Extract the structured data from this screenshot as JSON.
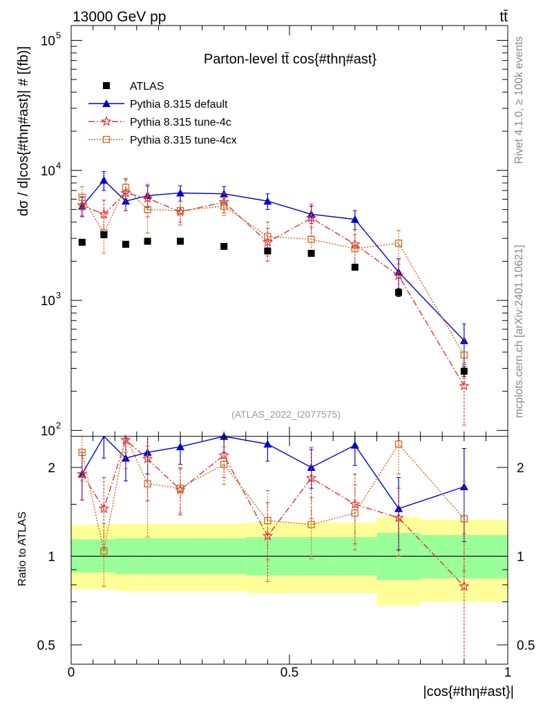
{
  "header": {
    "energy_label": "13000 GeV pp",
    "process_label": "tt̄"
  },
  "side_labels": {
    "rivet": "Rivet 4.1.0, ≥ 100k events",
    "mcplots": "mcplots.cern.ch [arXiv:2401.10621]"
  },
  "colors": {
    "atlas": "#000000",
    "default": "#0000cc",
    "tune4c": "#dd3333",
    "tune4cx": "#cc6622",
    "band_inner": "#99ff99",
    "band_outer": "#ffff99"
  },
  "chart_data": [
    {
      "type": "scatter",
      "panel": "main",
      "title": "Parton-level tt̄ cos{#thη#ast}",
      "watermark": "(ATLAS_2022_I2077575)",
      "ylabel": "dσ / d|cos{#thη#ast}| # [(fb)]",
      "xlabel": "|cos{#thη#ast}|",
      "yscale": "log",
      "xlim": [
        0,
        1
      ],
      "ylim": [
        90,
        130000
      ],
      "y_ticks": [
        {
          "value": 100,
          "label": "10",
          "exp": "2"
        },
        {
          "value": 1000,
          "label": "10",
          "exp": "3"
        },
        {
          "value": 10000,
          "label": "10",
          "exp": "4"
        },
        {
          "value": 100000,
          "label": "10",
          "exp": "5"
        }
      ],
      "legend": [
        {
          "name": "ATLAS",
          "marker": "square"
        },
        {
          "name": "Pythia 8.315 default",
          "marker": "triangle"
        },
        {
          "name": "Pythia 8.315 tune-4c",
          "marker": "star"
        },
        {
          "name": "Pythia 8.315 tune-4cx",
          "marker": "open-square"
        }
      ],
      "series": [
        {
          "name": "ATLAS",
          "x": [
            0.025,
            0.075,
            0.125,
            0.175,
            0.25,
            0.35,
            0.45,
            0.55,
            0.65,
            0.75,
            0.9
          ],
          "values": [
            2800,
            3200,
            2700,
            2850,
            2850,
            2600,
            2400,
            2300,
            1800,
            1150,
            285
          ],
          "err": [
            120,
            150,
            120,
            130,
            120,
            110,
            110,
            110,
            90,
            80,
            25
          ]
        },
        {
          "name": "Pythia 8.315 default",
          "x": [
            0.025,
            0.075,
            0.125,
            0.175,
            0.25,
            0.35,
            0.45,
            0.55,
            0.65,
            0.75,
            0.9
          ],
          "values": [
            5300,
            8400,
            5800,
            6400,
            6700,
            6600,
            5800,
            4600,
            4200,
            1650,
            490
          ],
          "err": [
            900,
            1400,
            900,
            1200,
            900,
            900,
            800,
            700,
            700,
            450,
            170
          ]
        },
        {
          "name": "Pythia 8.315 tune-4c",
          "x": [
            0.025,
            0.075,
            0.125,
            0.175,
            0.25,
            0.35,
            0.45,
            0.55,
            0.65,
            0.75,
            0.9
          ],
          "values": [
            5400,
            4600,
            6700,
            6100,
            4800,
            5700,
            2800,
            4300,
            2700,
            1550,
            220
          ],
          "err": [
            900,
            1300,
            1800,
            1700,
            1000,
            1000,
            800,
            1200,
            800,
            350,
            110
          ]
        },
        {
          "name": "Pythia 8.315 tune-4cx",
          "x": [
            0.025,
            0.075,
            0.125,
            0.175,
            0.25,
            0.35,
            0.45,
            0.55,
            0.65,
            0.75,
            0.9
          ],
          "values": [
            6200,
            3300,
            7400,
            5000,
            4900,
            5300,
            3100,
            2950,
            2500,
            2750,
            380
          ],
          "err": [
            1300,
            1000,
            1300,
            1700,
            900,
            800,
            900,
            700,
            700,
            700,
            130
          ]
        }
      ]
    },
    {
      "type": "line",
      "panel": "ratio",
      "ylabel": "Ratio to ATLAS",
      "xlabel": "|cos{#thη#ast}|",
      "yscale": "log",
      "xlim": [
        0,
        1
      ],
      "ylim": [
        0.43,
        2.55
      ],
      "x_ticks": [
        {
          "value": 0,
          "label": "0"
        },
        {
          "value": 0.5,
          "label": "0.5"
        },
        {
          "value": 1,
          "label": "1"
        }
      ],
      "y_ticks": [
        {
          "value": 0.5,
          "label": "0.5"
        },
        {
          "value": 1,
          "label": "1"
        },
        {
          "value": 2,
          "label": "2"
        }
      ],
      "bin_edges": [
        0,
        0.05,
        0.1,
        0.15,
        0.2,
        0.3,
        0.4,
        0.5,
        0.6,
        0.7,
        0.8,
        1.0
      ],
      "band_inner": [
        [
          0.88,
          1.14
        ],
        [
          0.88,
          1.14
        ],
        [
          0.87,
          1.15
        ],
        [
          0.87,
          1.15
        ],
        [
          0.87,
          1.15
        ],
        [
          0.87,
          1.15
        ],
        [
          0.86,
          1.16
        ],
        [
          0.86,
          1.16
        ],
        [
          0.86,
          1.16
        ],
        [
          0.83,
          1.2
        ],
        [
          0.84,
          1.18
        ]
      ],
      "band_outer": [
        [
          0.77,
          1.28
        ],
        [
          0.77,
          1.28
        ],
        [
          0.76,
          1.29
        ],
        [
          0.76,
          1.29
        ],
        [
          0.76,
          1.29
        ],
        [
          0.76,
          1.29
        ],
        [
          0.75,
          1.3
        ],
        [
          0.75,
          1.3
        ],
        [
          0.75,
          1.3
        ],
        [
          0.68,
          1.36
        ],
        [
          0.7,
          1.33
        ]
      ],
      "series": [
        {
          "name": "Pythia 8.315 default",
          "x": [
            0.025,
            0.075,
            0.125,
            0.175,
            0.25,
            0.35,
            0.45,
            0.55,
            0.65,
            0.75,
            0.9
          ],
          "values": [
            1.9,
            2.65,
            2.15,
            2.25,
            2.35,
            2.55,
            2.4,
            2.0,
            2.38,
            1.45,
            1.72
          ],
          "err": [
            0.35,
            0.5,
            0.35,
            0.35,
            0.3,
            0.3,
            0.3,
            0.3,
            0.35,
            0.4,
            0.6
          ]
        },
        {
          "name": "Pythia 8.315 tune-4c",
          "x": [
            0.025,
            0.075,
            0.125,
            0.175,
            0.25,
            0.35,
            0.45,
            0.55,
            0.65,
            0.75,
            0.9
          ],
          "values": [
            1.9,
            1.45,
            2.48,
            2.14,
            1.68,
            2.2,
            1.17,
            1.84,
            1.5,
            1.35,
            0.79
          ],
          "err": [
            0.35,
            0.4,
            0.5,
            0.6,
            0.3,
            0.35,
            0.35,
            0.5,
            0.4,
            0.35,
            0.4
          ]
        },
        {
          "name": "Pythia 8.315 tune-4cx",
          "x": [
            0.025,
            0.075,
            0.125,
            0.175,
            0.25,
            0.35,
            0.45,
            0.55,
            0.65,
            0.75,
            0.9
          ],
          "values": [
            2.25,
            1.04,
            2.7,
            1.76,
            1.7,
            2.05,
            1.32,
            1.28,
            1.4,
            2.4,
            1.34
          ],
          "err": [
            0.45,
            0.25,
            0.45,
            0.6,
            0.3,
            0.3,
            0.35,
            0.3,
            0.35,
            0.5,
            0.45
          ]
        }
      ]
    }
  ]
}
